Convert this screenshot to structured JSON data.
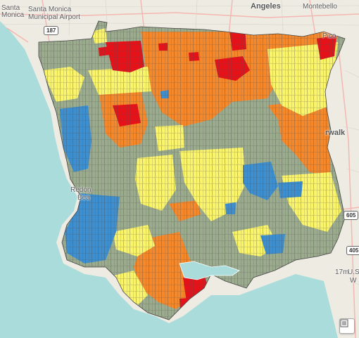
{
  "map": {
    "labels": {
      "santa_monica_1": "Santa",
      "santa_monica_2": "Monica",
      "smo_airport_1": "Santa Monica",
      "smo_airport_2": "Municipal Airport",
      "angeles": "Angeles",
      "montebello": "Montebello",
      "pico": "Pico",
      "norwalk": "rwalk",
      "redondo_1": "Redon",
      "redondo_2": "Bea",
      "us_1": "U.S.",
      "us_2": "W",
      "elevation": "17m"
    },
    "shields": {
      "i187": "187",
      "i605": "605",
      "i405": "405"
    },
    "colors": {
      "water": "#a9dcdb",
      "land": "#eeebe3",
      "gray_green": "#9bab8e",
      "yellow": "#faf46a",
      "orange": "#f5882a",
      "red": "#e6121a",
      "blue": "#3d8fd0"
    },
    "legend_icon": "legend-list-icon"
  }
}
